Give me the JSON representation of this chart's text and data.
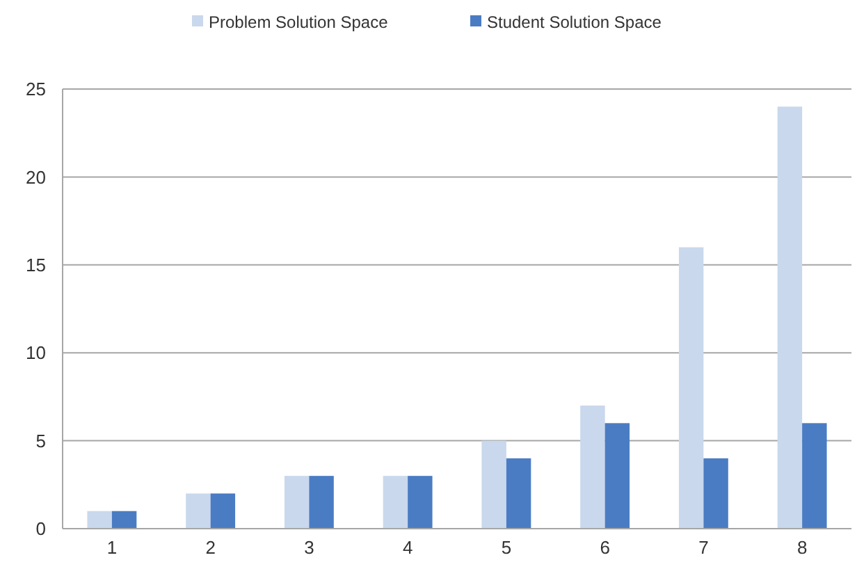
{
  "chart_data": {
    "type": "bar",
    "categories": [
      "1",
      "2",
      "3",
      "4",
      "5",
      "6",
      "7",
      "8"
    ],
    "series": [
      {
        "name": "Problem Solution Space",
        "color": "#c9d8ec",
        "values": [
          1,
          2,
          3,
          3,
          5,
          7,
          16,
          24
        ]
      },
      {
        "name": "Student Solution Space",
        "color": "#4a7cc3",
        "values": [
          1,
          2,
          3,
          3,
          4,
          6,
          4,
          6
        ]
      }
    ],
    "ylim": [
      0,
      25
    ],
    "yticks": [
      0,
      5,
      10,
      15,
      20,
      25
    ],
    "grid": "y",
    "legend": "top"
  }
}
